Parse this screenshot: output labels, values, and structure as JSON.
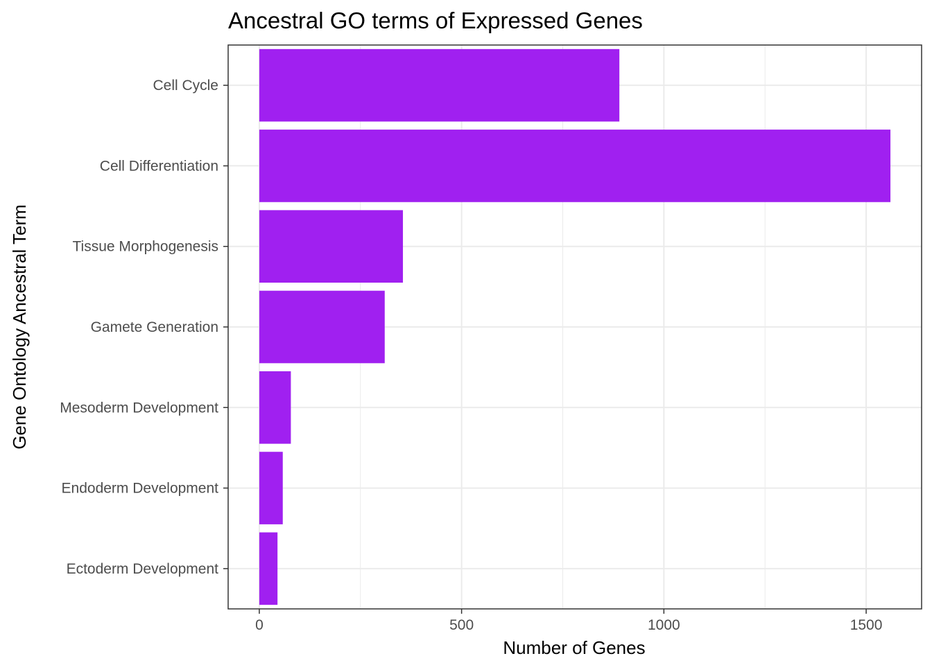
{
  "chart_data": {
    "type": "bar",
    "orientation": "horizontal",
    "title": "Ancestral GO terms of Expressed Genes",
    "xlabel": "Number of Genes",
    "ylabel": "Gene Ontology Ancestral Term",
    "categories": [
      "Cell Cycle",
      "Cell Differentiation",
      "Tissue Morphogenesis",
      "Gamete Generation",
      "Mesoderm Development",
      "Endoderm Development",
      "Ectoderm Development"
    ],
    "values": [
      890,
      1560,
      355,
      310,
      78,
      58,
      45
    ],
    "xlim": [
      -77,
      1637
    ],
    "xticks": [
      0,
      500,
      1000,
      1500
    ],
    "xtick_labels": [
      "0",
      "500",
      "1000",
      "1500"
    ],
    "grid": true,
    "bar_color": "#a020f0",
    "grid_color": "#ebebeb",
    "panel_border_color": "#333333"
  }
}
